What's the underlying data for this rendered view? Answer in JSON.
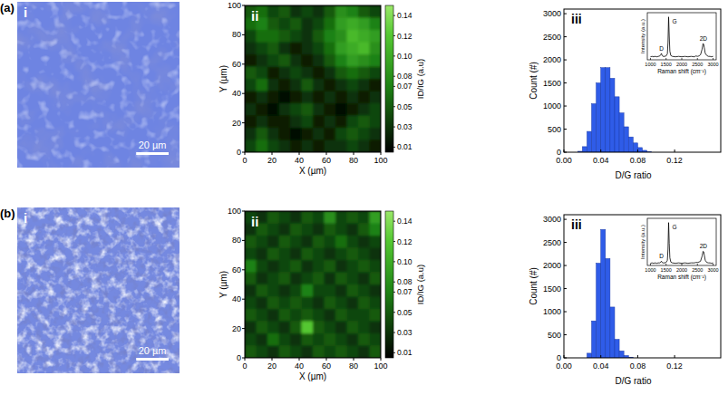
{
  "chart_data": [
    {
      "type": "image",
      "annotations": [
        "(a)",
        "i"
      ],
      "scale_bar": {
        "value": 20,
        "label": "20 µm"
      },
      "xlim": [
        0,
        100
      ],
      "color": "#6e84e2",
      "tick_labels": false
    },
    {
      "type": "heatmap",
      "annotations": [
        "ii"
      ],
      "x_label": "X (µm)",
      "y_label": "Y (µm)",
      "xlim": [
        0,
        100
      ],
      "ylim": [
        0,
        100
      ],
      "xticks": [
        0,
        20,
        40,
        60,
        80,
        100
      ],
      "yticks": [
        0,
        20,
        40,
        60,
        80,
        100
      ],
      "z": [
        [
          0.05,
          0.06,
          0.04,
          0.05,
          0.03,
          0.04,
          0.03,
          0.05,
          0.08,
          0.07,
          0.05,
          0.04
        ],
        [
          0.06,
          0.07,
          0.05,
          0.04,
          0.05,
          0.03,
          0.04,
          0.06,
          0.09,
          0.1,
          0.09,
          0.07
        ],
        [
          0.04,
          0.06,
          0.06,
          0.05,
          0.04,
          0.03,
          0.05,
          0.07,
          0.08,
          0.11,
          0.1,
          0.09
        ],
        [
          0.03,
          0.04,
          0.05,
          0.03,
          0.02,
          0.03,
          0.04,
          0.06,
          0.09,
          0.1,
          0.11,
          0.08
        ],
        [
          0.02,
          0.03,
          0.04,
          0.05,
          0.03,
          0.02,
          0.03,
          0.05,
          0.07,
          0.09,
          0.08,
          0.07
        ],
        [
          0.05,
          0.04,
          0.02,
          0.03,
          0.04,
          0.03,
          0.02,
          0.03,
          0.05,
          0.06,
          0.05,
          0.04
        ],
        [
          0.04,
          0.06,
          0.03,
          0.02,
          0.03,
          0.05,
          0.03,
          0.02,
          0.03,
          0.04,
          0.03,
          0.02
        ],
        [
          0.02,
          0.03,
          0.02,
          0.01,
          0.02,
          0.03,
          0.02,
          0.03,
          0.02,
          0.03,
          0.02,
          0.03
        ],
        [
          0.03,
          0.02,
          0.01,
          0.03,
          0.04,
          0.05,
          0.03,
          0.02,
          0.01,
          0.02,
          0.03,
          0.04
        ],
        [
          0.02,
          0.03,
          0.02,
          0.02,
          0.03,
          0.04,
          0.02,
          0.03,
          0.02,
          0.04,
          0.05,
          0.04
        ],
        [
          0.03,
          0.05,
          0.03,
          0.02,
          0.01,
          0.02,
          0.03,
          0.02,
          0.04,
          0.05,
          0.04,
          0.03
        ],
        [
          0.04,
          0.06,
          0.04,
          0.03,
          0.02,
          0.03,
          0.02,
          0.03,
          0.03,
          0.04,
          0.03,
          0.02
        ]
      ],
      "colorbar": {
        "label": "ID/IG (a.u)",
        "range": [
          0.005,
          0.15
        ],
        "ticks": [
          0.01,
          0.03,
          0.05,
          0.07,
          0.08,
          {
            "value": 0.1,
            "label": "0.10"
          },
          0.12,
          0.14
        ]
      }
    },
    {
      "type": "histogram",
      "annotations": [
        "iii"
      ],
      "x_label": "D/G ratio",
      "y_label": "Count (#)",
      "bins": [
        0.015,
        0.02,
        0.025,
        0.03,
        0.035,
        0.04,
        0.045,
        0.05,
        0.055,
        0.06,
        0.065,
        0.07,
        0.075,
        0.08,
        0.085,
        0.09,
        0.095
      ],
      "counts": [
        20,
        120,
        450,
        1050,
        1500,
        1830,
        1830,
        1600,
        1200,
        850,
        550,
        330,
        200,
        100,
        40,
        10
      ],
      "color": "#2f5ce8",
      "xlim": [
        0,
        0.17
      ],
      "ylim": [
        0,
        3100
      ],
      "xticks": [
        {
          "value": 0,
          "label": "0.00"
        },
        0.04,
        0.08,
        0.12
      ],
      "yticks": [
        0,
        500,
        1000,
        1500,
        2000,
        2500,
        3000
      ]
    },
    {
      "type": "line",
      "x_label": "Raman shift (cm⁻¹)",
      "y_label": "Intensity (a.u.)",
      "x": [
        1000,
        1050,
        1100,
        1150,
        1200,
        1250,
        1300,
        1330,
        1350,
        1370,
        1400,
        1450,
        1500,
        1540,
        1560,
        1580,
        1600,
        1620,
        1650,
        1700,
        1800,
        1900,
        2000,
        2100,
        2200,
        2300,
        2400,
        2450,
        2500,
        2550,
        2600,
        2650,
        2680,
        2700,
        2720,
        2750,
        2800,
        2850,
        2900,
        2950,
        3000
      ],
      "values": [
        0.07,
        0.08,
        0.07,
        0.08,
        0.07,
        0.08,
        0.09,
        0.12,
        0.15,
        0.11,
        0.08,
        0.08,
        0.09,
        0.14,
        0.4,
        1.0,
        0.55,
        0.2,
        0.1,
        0.08,
        0.07,
        0.08,
        0.07,
        0.08,
        0.07,
        0.08,
        0.07,
        0.09,
        0.08,
        0.09,
        0.12,
        0.25,
        0.38,
        0.36,
        0.28,
        0.15,
        0.1,
        0.08,
        0.08,
        0.07,
        0.08
      ],
      "color": "#000000",
      "xlim": [
        900,
        3100
      ],
      "ylim": [
        0,
        1.1
      ],
      "xticks": [
        1000,
        1500,
        2000,
        2500,
        3000
      ],
      "tick_labels": "x",
      "annotations": [
        {
          "text": "D",
          "x": 1350
        },
        {
          "text": "G",
          "x": 1580
        },
        {
          "text": "2D",
          "x": 2690
        }
      ]
    },
    {
      "type": "image",
      "annotations": [
        "(b)",
        "i"
      ],
      "scale_bar": {
        "value": 20,
        "label": "20 µm"
      },
      "xlim": [
        0,
        100
      ],
      "color": "#7589e0",
      "tick_labels": false
    },
    {
      "type": "heatmap",
      "annotations": [
        "ii"
      ],
      "x_label": "X (µm)",
      "y_label": "Y (µm)",
      "xlim": [
        0,
        100
      ],
      "ylim": [
        0,
        100
      ],
      "xticks": [
        0,
        20,
        40,
        60,
        80,
        100
      ],
      "yticks": [
        0,
        20,
        40,
        60,
        80,
        100
      ],
      "z": [
        [
          0.04,
          0.03,
          0.05,
          0.04,
          0.03,
          0.05,
          0.04,
          0.08,
          0.04,
          0.05,
          0.04,
          0.09
        ],
        [
          0.03,
          0.05,
          0.04,
          0.03,
          0.05,
          0.04,
          0.03,
          0.05,
          0.04,
          0.03,
          0.05,
          0.07
        ],
        [
          0.05,
          0.04,
          0.03,
          0.05,
          0.04,
          0.03,
          0.05,
          0.04,
          0.06,
          0.04,
          0.03,
          0.04
        ],
        [
          0.04,
          0.03,
          0.05,
          0.04,
          0.03,
          0.05,
          0.04,
          0.03,
          0.04,
          0.05,
          0.04,
          0.03
        ],
        [
          0.07,
          0.04,
          0.03,
          0.04,
          0.05,
          0.03,
          0.04,
          0.05,
          0.03,
          0.04,
          0.05,
          0.04
        ],
        [
          0.05,
          0.03,
          0.04,
          0.05,
          0.03,
          0.04,
          0.05,
          0.03,
          0.05,
          0.04,
          0.03,
          0.05
        ],
        [
          0.03,
          0.05,
          0.04,
          0.03,
          0.04,
          0.07,
          0.04,
          0.04,
          0.03,
          0.05,
          0.04,
          0.03
        ],
        [
          0.04,
          0.03,
          0.05,
          0.04,
          0.05,
          0.04,
          0.03,
          0.05,
          0.04,
          0.03,
          0.05,
          0.04
        ],
        [
          0.05,
          0.04,
          0.03,
          0.05,
          0.04,
          0.05,
          0.04,
          0.03,
          0.05,
          0.04,
          0.04,
          0.05
        ],
        [
          0.03,
          0.05,
          0.04,
          0.03,
          0.05,
          0.12,
          0.05,
          0.04,
          0.03,
          0.05,
          0.04,
          0.03
        ],
        [
          0.04,
          0.03,
          0.06,
          0.04,
          0.03,
          0.05,
          0.04,
          0.05,
          0.04,
          0.03,
          0.05,
          0.04
        ],
        [
          0.05,
          0.04,
          0.03,
          0.05,
          0.04,
          0.03,
          0.05,
          0.04,
          0.05,
          0.04,
          0.03,
          0.05
        ]
      ],
      "colorbar": {
        "label": "ID/IG (a.u)",
        "range": [
          0.005,
          0.15
        ],
        "ticks": [
          0.01,
          0.03,
          0.05,
          0.07,
          0.08,
          {
            "value": 0.1,
            "label": "0.10"
          },
          0.12,
          0.14
        ]
      }
    },
    {
      "type": "histogram",
      "annotations": [
        "iii"
      ],
      "x_label": "D/G ratio",
      "y_label": "Count (#)",
      "bins": [
        0.025,
        0.03,
        0.035,
        0.04,
        0.045,
        0.05,
        0.055,
        0.06,
        0.065,
        0.07,
        0.075
      ],
      "counts": [
        100,
        800,
        2050,
        2780,
        2150,
        1100,
        400,
        150,
        50,
        15
      ],
      "color": "#2f5ce8",
      "xlim": [
        0,
        0.17
      ],
      "ylim": [
        0,
        3100
      ],
      "xticks": [
        {
          "value": 0,
          "label": "0.00"
        },
        0.04,
        0.08,
        0.12
      ],
      "yticks": [
        0,
        500,
        1000,
        1500,
        2000,
        2500,
        3000
      ]
    },
    {
      "type": "line",
      "x_label": "Raman shift (cm⁻¹)",
      "y_label": "Intensity (a.u.)",
      "x": [
        1000,
        1050,
        1100,
        1150,
        1200,
        1250,
        1300,
        1330,
        1350,
        1370,
        1400,
        1450,
        1500,
        1540,
        1560,
        1580,
        1600,
        1620,
        1650,
        1700,
        1800,
        1900,
        2000,
        2100,
        2200,
        2300,
        2400,
        2450,
        2500,
        2550,
        2600,
        2650,
        2680,
        2700,
        2720,
        2750,
        2800,
        2850,
        2900,
        2950,
        3000
      ],
      "values": [
        0.05,
        0.06,
        0.05,
        0.06,
        0.05,
        0.06,
        0.06,
        0.08,
        0.1,
        0.07,
        0.06,
        0.06,
        0.07,
        0.12,
        0.38,
        1.0,
        0.52,
        0.18,
        0.08,
        0.06,
        0.05,
        0.06,
        0.05,
        0.06,
        0.05,
        0.06,
        0.06,
        0.07,
        0.07,
        0.08,
        0.1,
        0.22,
        0.33,
        0.32,
        0.24,
        0.12,
        0.07,
        0.06,
        0.06,
        0.05,
        0.06
      ],
      "color": "#000000",
      "xlim": [
        900,
        3100
      ],
      "ylim": [
        0,
        1.1
      ],
      "xticks": [
        1000,
        1500,
        2000,
        2500,
        3000
      ],
      "tick_labels": "x",
      "annotations": [
        {
          "text": "D",
          "x": 1350
        },
        {
          "text": "G",
          "x": 1580
        },
        {
          "text": "2D",
          "x": 2690
        }
      ]
    }
  ]
}
